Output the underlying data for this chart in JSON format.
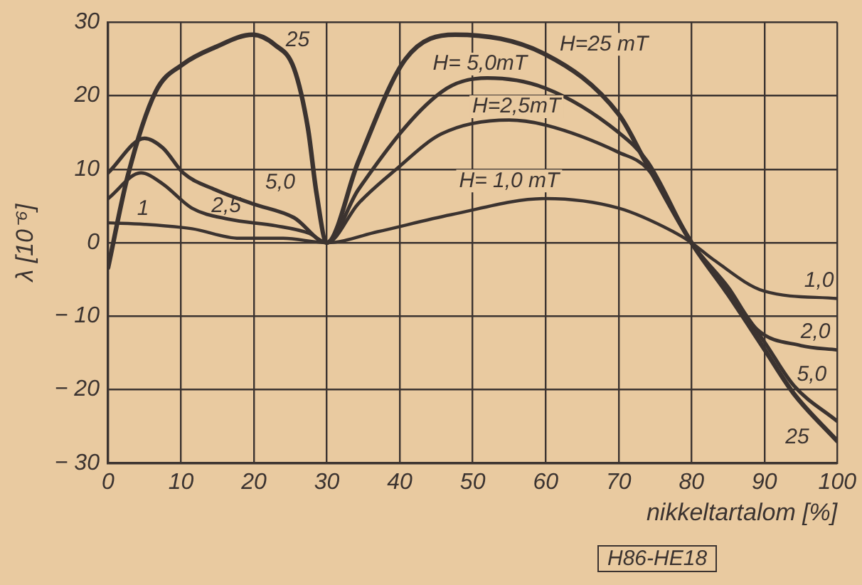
{
  "chart_data": {
    "type": "line",
    "xlabel": "nikkeltartalom [%]",
    "ylabel": "λ [10⁻⁶]",
    "xlim": [
      0,
      100
    ],
    "ylim": [
      -30,
      30
    ],
    "xticks": [
      0,
      10,
      20,
      30,
      40,
      50,
      60,
      70,
      80,
      90,
      100
    ],
    "yticks": [
      -30,
      -20,
      -10,
      0,
      10,
      20,
      30
    ],
    "grid": true,
    "legend": false,
    "marker": "none",
    "line_style": "solid",
    "series": [
      {
        "name": "H= 1,0 mT",
        "color": "#3b3330",
        "x": [
          0,
          5,
          11.5,
          18,
          24,
          30,
          37,
          47,
          60,
          70,
          77.5,
          80,
          83,
          90,
          100
        ],
        "values": [
          2.7,
          2.5,
          1.9,
          0.6,
          0.6,
          0,
          1.5,
          3.8,
          6,
          4.7,
          1.5,
          0,
          -2.3,
          -6.6,
          -7.6
        ]
      },
      {
        "name": "H=2,5mT",
        "color": "#3b3330",
        "x": [
          0,
          4.5,
          7.5,
          11.5,
          16.5,
          23,
          27.5,
          30,
          34.3,
          39.4,
          45.7,
          55,
          60,
          70,
          74,
          80,
          85,
          89,
          95,
          100
        ],
        "values": [
          6,
          9.5,
          8,
          4.7,
          3.2,
          2.3,
          1.3,
          0,
          5.3,
          9.9,
          14.8,
          16.7,
          16,
          12.3,
          10,
          0,
          -6,
          -11.8,
          -14,
          -14.6
        ]
      },
      {
        "name": "H= 5,0mT",
        "color": "#3b3330",
        "x": [
          0,
          5,
          7.5,
          10.3,
          14.7,
          19.8,
          25.5,
          30,
          34.3,
          45.7,
          52,
          60,
          70,
          74,
          80,
          85,
          90,
          94,
          100
        ],
        "values": [
          9.5,
          14.2,
          12.9,
          9.5,
          7.2,
          5.3,
          3.4,
          0,
          7.2,
          20.5,
          22.4,
          21,
          15,
          11,
          0,
          -6.5,
          -13.5,
          -19.4,
          -24.3
        ]
      },
      {
        "name": "H=25 mT",
        "color": "#3b3330",
        "x": [
          0,
          2.7,
          6.5,
          10.3,
          14.7,
          19.8,
          22.9,
          25.5,
          27.4,
          28.6,
          30,
          34.3,
          40.8,
          47.6,
          60,
          70,
          73.7,
          80,
          85,
          90,
          94,
          100
        ],
        "values": [
          -3.4,
          9.1,
          20.5,
          24.3,
          26.6,
          28.3,
          26.9,
          23.7,
          15.6,
          6.6,
          0,
          11,
          25,
          28.3,
          25.6,
          17.5,
          11,
          0,
          -7,
          -14.5,
          -20.5,
          -27
        ]
      }
    ],
    "annotations": [
      "1",
      "2,5",
      "5,0",
      "25",
      "1,0",
      "2,0",
      "5,0",
      "25",
      "H86-HE18"
    ]
  }
}
